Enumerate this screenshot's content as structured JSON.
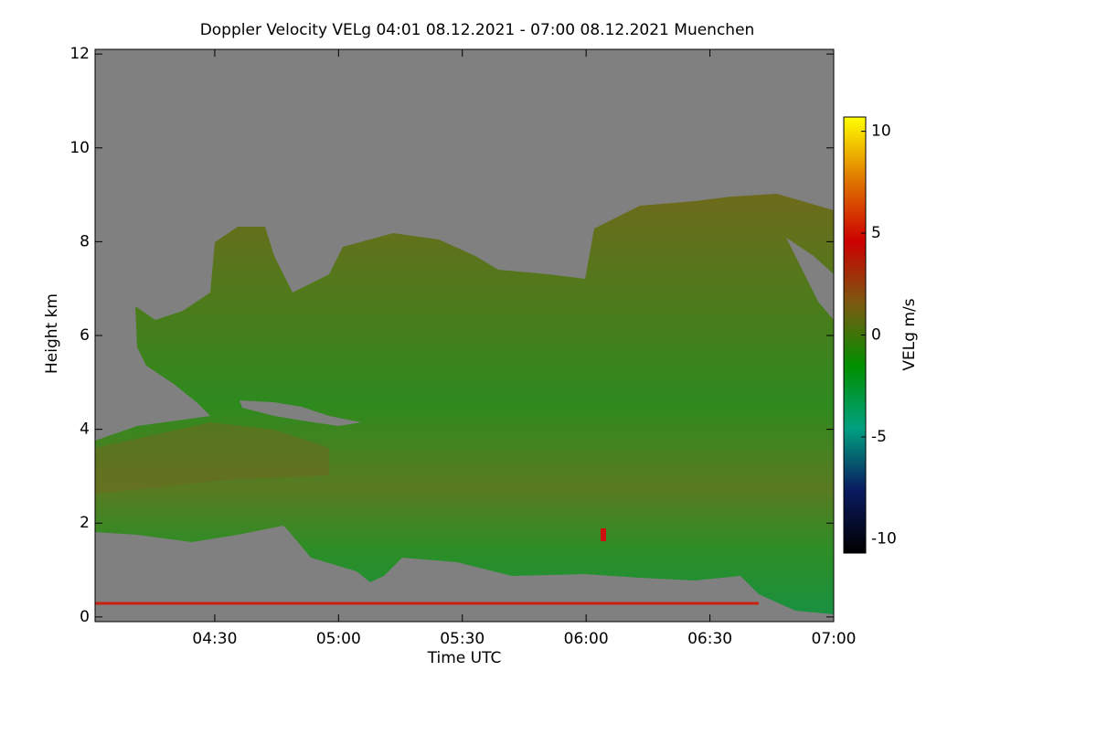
{
  "chart_data": {
    "type": "heatmap",
    "title": "Doppler Velocity VELg   04:01 08.12.2021 - 07:00 08.12.2021 Muenchen",
    "x_label": "Time UTC",
    "y_label": "Height km",
    "colorbar_label": "VELg m/s",
    "xlim": [
      241,
      420
    ],
    "xticks": [
      {
        "value": 270,
        "label": "04:30"
      },
      {
        "value": 300,
        "label": "05:00"
      },
      {
        "value": 330,
        "label": "05:30"
      },
      {
        "value": 360,
        "label": "06:00"
      },
      {
        "value": 390,
        "label": "06:30"
      },
      {
        "value": 420,
        "label": "07:00"
      }
    ],
    "ylim": [
      -0.1,
      12.1
    ],
    "yticks": [
      0,
      2,
      4,
      6,
      8,
      10,
      12
    ],
    "clim": [
      -10.7,
      10.7
    ],
    "cticks": [
      -10,
      -5,
      0,
      5,
      10
    ],
    "colormap": [
      "#000000",
      "#0a1a60",
      "#00a080",
      "#009000",
      "#7a5a10",
      "#cc0000",
      "#e07800",
      "#ffff00"
    ],
    "background": "#808080"
  }
}
